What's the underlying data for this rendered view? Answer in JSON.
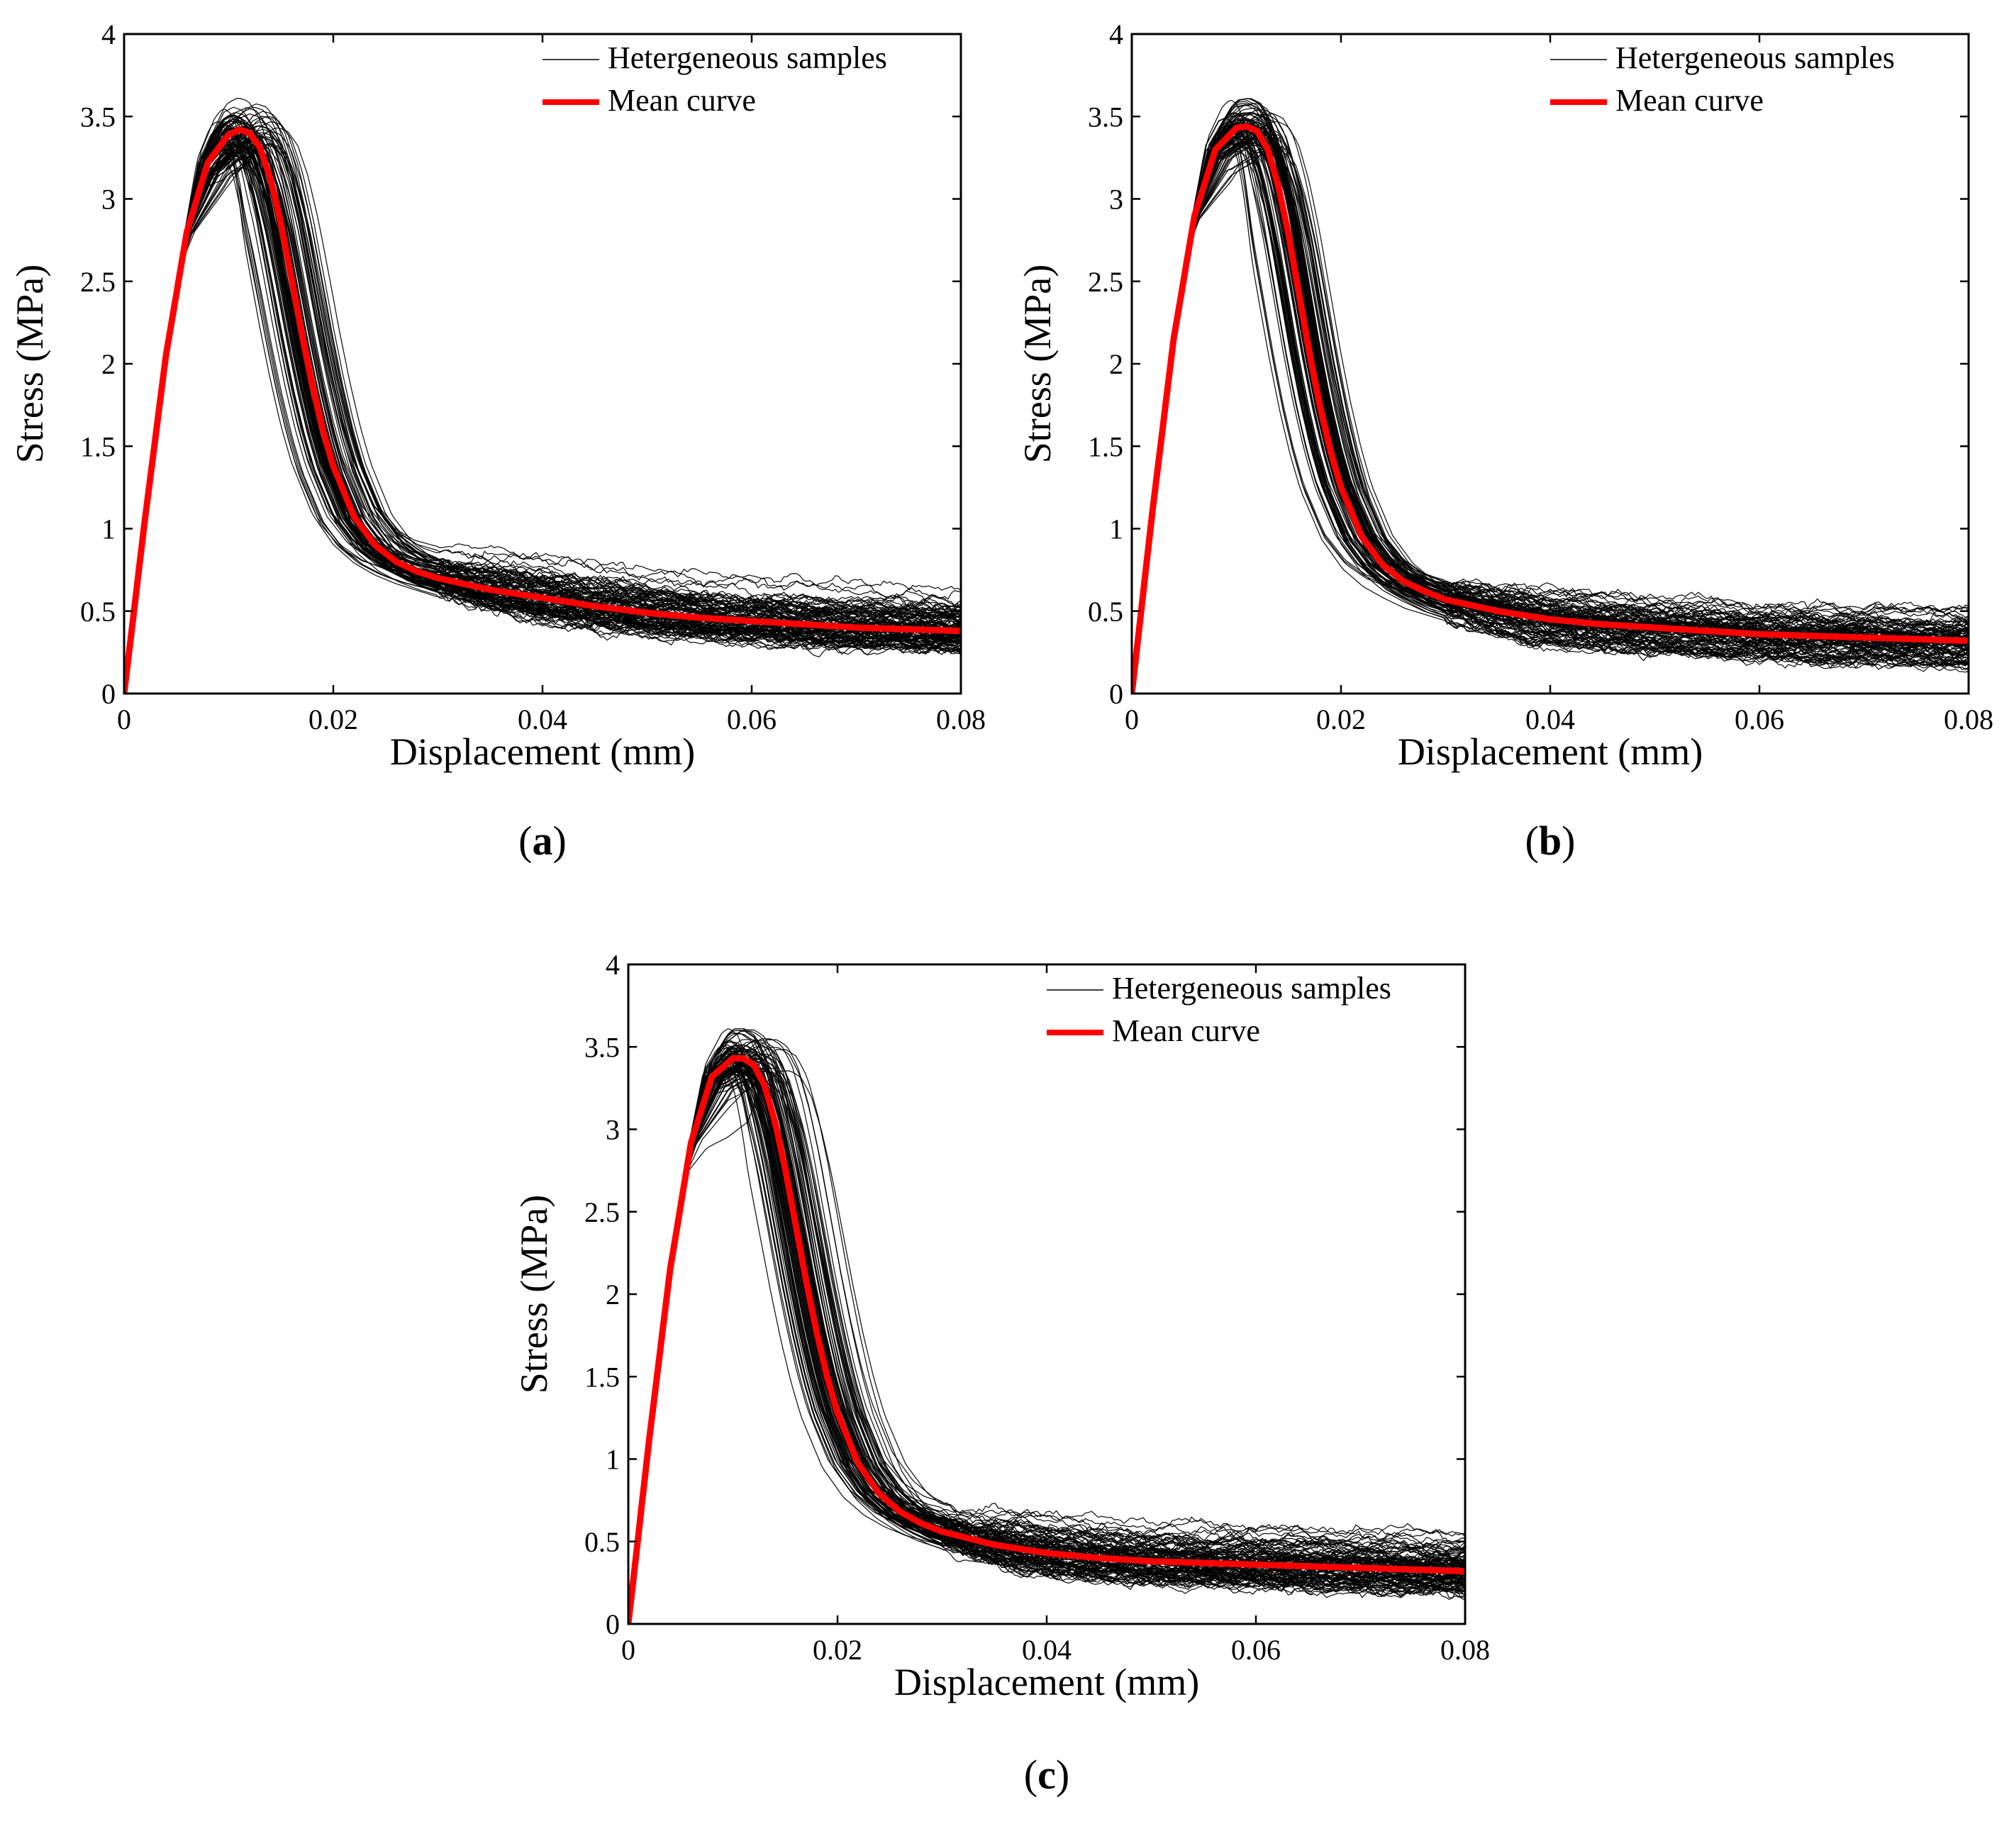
{
  "chart_data": [
    {
      "type": "line",
      "panel": "(a)",
      "caption_letter": "a",
      "xlabel": "Displacement (mm)",
      "ylabel": "Stress (MPa)",
      "xlim": [
        0,
        0.08
      ],
      "ylim": [
        0,
        4
      ],
      "xticks": [
        0,
        0.02,
        0.04,
        0.06,
        0.08
      ],
      "xtick_labels": [
        "0",
        "0.02",
        "0.04",
        "0.06",
        "0.08"
      ],
      "yticks": [
        0,
        0.5,
        1,
        1.5,
        2,
        2.5,
        3,
        3.5,
        4
      ],
      "ytick_labels": [
        "0",
        "0.5",
        "1",
        "1.5",
        "2",
        "2.5",
        "3",
        "3.5",
        "4"
      ],
      "grid": false,
      "legend_position": "top-right",
      "legend": [
        "Hetergeneous samples",
        "Mean curve"
      ],
      "series": [
        {
          "name": "Mean curve",
          "color": "#ff0000",
          "x": [
            0,
            0.002,
            0.004,
            0.006,
            0.008,
            0.01,
            0.011,
            0.012,
            0.013,
            0.014,
            0.015,
            0.016,
            0.017,
            0.018,
            0.019,
            0.02,
            0.022,
            0.024,
            0.026,
            0.028,
            0.03,
            0.035,
            0.04,
            0.045,
            0.05,
            0.055,
            0.06,
            0.065,
            0.07,
            0.075,
            0.08
          ],
          "y": [
            0,
            1.06,
            2.05,
            2.8,
            3.22,
            3.39,
            3.42,
            3.4,
            3.31,
            3.12,
            2.85,
            2.52,
            2.18,
            1.87,
            1.6,
            1.38,
            1.07,
            0.9,
            0.8,
            0.74,
            0.7,
            0.63,
            0.58,
            0.53,
            0.49,
            0.46,
            0.44,
            0.42,
            0.4,
            0.39,
            0.38
          ]
        }
      ],
      "samples": {
        "name": "Hetergeneous samples",
        "color": "#000000",
        "count": 100,
        "peak_range": [
          3.0,
          3.67
        ],
        "residual_range": [
          0.2,
          0.85
        ]
      }
    },
    {
      "type": "line",
      "panel": "(b)",
      "caption_letter": "b",
      "xlabel": "Displacement (mm)",
      "ylabel": "Stress (MPa)",
      "xlim": [
        0,
        0.08
      ],
      "ylim": [
        0,
        4
      ],
      "xticks": [
        0,
        0.02,
        0.04,
        0.06,
        0.08
      ],
      "xtick_labels": [
        "0",
        "0.02",
        "0.04",
        "0.06",
        "0.08"
      ],
      "yticks": [
        0,
        0.5,
        1,
        1.5,
        2,
        2.5,
        3,
        3.5,
        4
      ],
      "ytick_labels": [
        "0",
        "0.5",
        "1",
        "1.5",
        "2",
        "2.5",
        "3",
        "3.5",
        "4"
      ],
      "grid": false,
      "legend_position": "top-right",
      "legend": [
        "Hetergeneous samples",
        "Mean curve"
      ],
      "series": [
        {
          "name": "Mean curve",
          "color": "#ff0000",
          "x": [
            0,
            0.002,
            0.004,
            0.006,
            0.008,
            0.01,
            0.011,
            0.012,
            0.013,
            0.014,
            0.015,
            0.016,
            0.017,
            0.018,
            0.019,
            0.02,
            0.022,
            0.024,
            0.026,
            0.028,
            0.03,
            0.035,
            0.04,
            0.045,
            0.05,
            0.055,
            0.06,
            0.065,
            0.07,
            0.075,
            0.08
          ],
          "y": [
            0,
            1.12,
            2.15,
            2.9,
            3.3,
            3.43,
            3.44,
            3.41,
            3.3,
            3.08,
            2.78,
            2.42,
            2.06,
            1.74,
            1.47,
            1.25,
            0.95,
            0.78,
            0.68,
            0.62,
            0.57,
            0.5,
            0.45,
            0.42,
            0.4,
            0.38,
            0.36,
            0.35,
            0.34,
            0.33,
            0.32
          ]
        }
      ],
      "samples": {
        "name": "Hetergeneous samples",
        "color": "#000000",
        "count": 100,
        "peak_range": [
          3.08,
          3.61
        ],
        "residual_range": [
          0.12,
          0.78
        ]
      }
    },
    {
      "type": "line",
      "panel": "(c)",
      "caption_letter": "c",
      "xlabel": "Displacement (mm)",
      "ylabel": "Stress (MPa)",
      "xlim": [
        0,
        0.08
      ],
      "ylim": [
        0,
        4
      ],
      "xticks": [
        0,
        0.02,
        0.04,
        0.06,
        0.08
      ],
      "xtick_labels": [
        "0",
        "0.02",
        "0.04",
        "0.06",
        "0.08"
      ],
      "yticks": [
        0,
        0.5,
        1,
        1.5,
        2,
        2.5,
        3,
        3.5,
        4
      ],
      "ytick_labels": [
        "0",
        "0.5",
        "1",
        "1.5",
        "2",
        "2.5",
        "3",
        "3.5",
        "4"
      ],
      "grid": false,
      "legend_position": "top-right",
      "legend": [
        "Hetergeneous samples",
        "Mean curve"
      ],
      "series": [
        {
          "name": "Mean curve",
          "color": "#ff0000",
          "x": [
            0,
            0.002,
            0.004,
            0.006,
            0.008,
            0.01,
            0.011,
            0.012,
            0.013,
            0.014,
            0.015,
            0.016,
            0.017,
            0.018,
            0.019,
            0.02,
            0.022,
            0.024,
            0.026,
            0.028,
            0.03,
            0.035,
            0.04,
            0.045,
            0.05,
            0.055,
            0.06,
            0.065,
            0.07,
            0.075,
            0.08
          ],
          "y": [
            0,
            1.12,
            2.15,
            2.92,
            3.32,
            3.43,
            3.43,
            3.39,
            3.27,
            3.05,
            2.76,
            2.42,
            2.08,
            1.77,
            1.5,
            1.28,
            0.97,
            0.79,
            0.68,
            0.61,
            0.56,
            0.48,
            0.43,
            0.4,
            0.38,
            0.37,
            0.36,
            0.35,
            0.34,
            0.33,
            0.32
          ]
        }
      ],
      "samples": {
        "name": "Hetergeneous samples",
        "color": "#000000",
        "count": 100,
        "peak_range": [
          3.08,
          3.61
        ],
        "residual_range": [
          0.14,
          0.68
        ]
      }
    }
  ]
}
